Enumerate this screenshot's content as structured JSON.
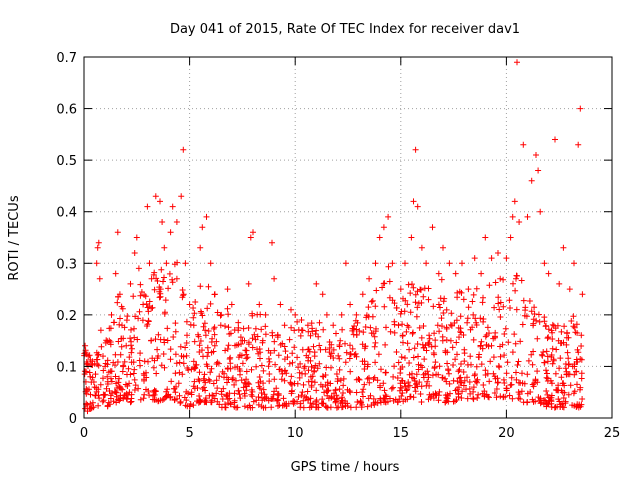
{
  "chart_data": {
    "type": "scatter",
    "title": "Day 041 of 2015, Rate Of TEC Index for receiver dav1",
    "xlabel": "GPS time / hours",
    "ylabel": "ROTI / TECUs",
    "xlim": [
      0,
      25
    ],
    "ylim": [
      0,
      0.7
    ],
    "xticks": [
      0,
      5,
      10,
      15,
      20,
      25
    ],
    "yticks": [
      0,
      0.1,
      0.2,
      0.3,
      0.4,
      0.5,
      0.6,
      0.7
    ],
    "xtick_labels": [
      "0",
      "5",
      "10",
      "15",
      "20",
      "25"
    ],
    "ytick_labels": [
      "0",
      "0.1",
      "0.2",
      "0.3",
      "0.4",
      "0.5",
      "0.6",
      "0.7"
    ],
    "grid": true,
    "marker": "+",
    "color": "#ff0000",
    "series": [
      {
        "name": "ROTI",
        "points": [
          [
            0.05,
            0.14
          ],
          [
            0.1,
            0.09
          ],
          [
            0.2,
            0.12
          ],
          [
            0.3,
            0.08
          ],
          [
            0.4,
            0.11
          ],
          [
            0.5,
            0.06
          ],
          [
            0.6,
            0.3
          ],
          [
            0.65,
            0.33
          ],
          [
            0.7,
            0.34
          ],
          [
            0.75,
            0.27
          ],
          [
            0.8,
            0.17
          ],
          [
            0.9,
            0.12
          ],
          [
            1.0,
            0.1
          ],
          [
            1.1,
            0.08
          ],
          [
            1.2,
            0.15
          ],
          [
            1.3,
            0.2
          ],
          [
            1.5,
            0.28
          ],
          [
            1.6,
            0.36
          ],
          [
            1.7,
            0.24
          ],
          [
            1.8,
            0.18
          ],
          [
            2.0,
            0.14
          ],
          [
            2.2,
            0.26
          ],
          [
            2.4,
            0.32
          ],
          [
            2.5,
            0.35
          ],
          [
            2.6,
            0.29
          ],
          [
            2.8,
            0.22
          ],
          [
            3.0,
            0.41
          ],
          [
            3.1,
            0.3
          ],
          [
            3.2,
            0.27
          ],
          [
            3.4,
            0.43
          ],
          [
            3.6,
            0.42
          ],
          [
            3.7,
            0.38
          ],
          [
            3.8,
            0.33
          ],
          [
            3.9,
            0.3
          ],
          [
            4.1,
            0.36
          ],
          [
            4.2,
            0.41
          ],
          [
            4.4,
            0.38
          ],
          [
            4.6,
            0.43
          ],
          [
            4.7,
            0.52
          ],
          [
            4.8,
            0.3
          ],
          [
            5.0,
            0.22
          ],
          [
            5.2,
            0.18
          ],
          [
            5.5,
            0.33
          ],
          [
            5.6,
            0.37
          ],
          [
            5.8,
            0.39
          ],
          [
            6.0,
            0.3
          ],
          [
            6.2,
            0.24
          ],
          [
            6.5,
            0.2
          ],
          [
            6.8,
            0.25
          ],
          [
            7.0,
            0.22
          ],
          [
            7.3,
            0.17
          ],
          [
            7.5,
            0.15
          ],
          [
            7.8,
            0.26
          ],
          [
            7.9,
            0.35
          ],
          [
            8.0,
            0.36
          ],
          [
            8.3,
            0.22
          ],
          [
            8.6,
            0.2
          ],
          [
            8.9,
            0.34
          ],
          [
            9.0,
            0.27
          ],
          [
            9.3,
            0.22
          ],
          [
            9.5,
            0.18
          ],
          [
            9.8,
            0.21
          ],
          [
            10.0,
            0.2
          ],
          [
            10.3,
            0.19
          ],
          [
            10.6,
            0.18
          ],
          [
            11.0,
            0.26
          ],
          [
            11.3,
            0.24
          ],
          [
            11.5,
            0.2
          ],
          [
            11.8,
            0.18
          ],
          [
            12.2,
            0.2
          ],
          [
            12.4,
            0.3
          ],
          [
            12.6,
            0.22
          ],
          [
            12.9,
            0.2
          ],
          [
            13.2,
            0.24
          ],
          [
            13.5,
            0.27
          ],
          [
            13.8,
            0.3
          ],
          [
            14.0,
            0.35
          ],
          [
            14.2,
            0.37
          ],
          [
            14.4,
            0.39
          ],
          [
            14.6,
            0.3
          ],
          [
            15.0,
            0.25
          ],
          [
            15.2,
            0.3
          ],
          [
            15.5,
            0.35
          ],
          [
            15.6,
            0.42
          ],
          [
            15.7,
            0.52
          ],
          [
            15.8,
            0.41
          ],
          [
            16.0,
            0.33
          ],
          [
            16.2,
            0.3
          ],
          [
            16.5,
            0.37
          ],
          [
            16.8,
            0.28
          ],
          [
            17.0,
            0.33
          ],
          [
            17.3,
            0.3
          ],
          [
            17.6,
            0.28
          ],
          [
            17.9,
            0.3
          ],
          [
            18.2,
            0.25
          ],
          [
            18.5,
            0.31
          ],
          [
            18.8,
            0.28
          ],
          [
            19.0,
            0.35
          ],
          [
            19.3,
            0.31
          ],
          [
            19.6,
            0.32
          ],
          [
            20.0,
            0.31
          ],
          [
            20.2,
            0.35
          ],
          [
            20.3,
            0.39
          ],
          [
            20.4,
            0.42
          ],
          [
            20.5,
            0.69
          ],
          [
            20.6,
            0.38
          ],
          [
            20.8,
            0.53
          ],
          [
            21.0,
            0.39
          ],
          [
            21.2,
            0.46
          ],
          [
            21.4,
            0.51
          ],
          [
            21.5,
            0.48
          ],
          [
            21.6,
            0.4
          ],
          [
            21.8,
            0.3
          ],
          [
            22.0,
            0.28
          ],
          [
            22.3,
            0.54
          ],
          [
            22.5,
            0.26
          ],
          [
            22.7,
            0.33
          ],
          [
            23.0,
            0.25
          ],
          [
            23.2,
            0.3
          ],
          [
            23.4,
            0.53
          ],
          [
            23.5,
            0.6
          ],
          [
            23.6,
            0.24
          ]
        ]
      }
    ],
    "dense_envelope": {
      "x": [
        0,
        0.5,
        1,
        1.5,
        2,
        2.5,
        3,
        3.5,
        4,
        4.5,
        5,
        5.5,
        6,
        6.5,
        7,
        7.5,
        8,
        8.5,
        9,
        9.5,
        10,
        10.5,
        11,
        11.5,
        12,
        12.5,
        13,
        13.5,
        14,
        14.5,
        15,
        15.5,
        16,
        16.5,
        17,
        17.5,
        18,
        18.5,
        19,
        19.5,
        20,
        20.5,
        21,
        21.5,
        22,
        22.5,
        23,
        23.6
      ],
      "upper": [
        0.14,
        0.12,
        0.16,
        0.24,
        0.22,
        0.27,
        0.26,
        0.3,
        0.28,
        0.32,
        0.2,
        0.28,
        0.26,
        0.22,
        0.22,
        0.17,
        0.22,
        0.2,
        0.18,
        0.16,
        0.2,
        0.18,
        0.2,
        0.16,
        0.17,
        0.2,
        0.19,
        0.23,
        0.27,
        0.3,
        0.22,
        0.28,
        0.27,
        0.26,
        0.28,
        0.24,
        0.26,
        0.25,
        0.27,
        0.27,
        0.28,
        0.3,
        0.26,
        0.22,
        0.2,
        0.18,
        0.22,
        0.16
      ],
      "lower": [
        0.01,
        0.02,
        0.02,
        0.03,
        0.03,
        0.03,
        0.04,
        0.03,
        0.04,
        0.03,
        0.02,
        0.03,
        0.03,
        0.02,
        0.02,
        0.02,
        0.02,
        0.02,
        0.02,
        0.02,
        0.02,
        0.02,
        0.02,
        0.02,
        0.02,
        0.02,
        0.02,
        0.02,
        0.03,
        0.03,
        0.03,
        0.04,
        0.03,
        0.04,
        0.03,
        0.03,
        0.04,
        0.03,
        0.04,
        0.04,
        0.04,
        0.03,
        0.03,
        0.03,
        0.02,
        0.02,
        0.02,
        0.02
      ],
      "count": 1500
    }
  }
}
